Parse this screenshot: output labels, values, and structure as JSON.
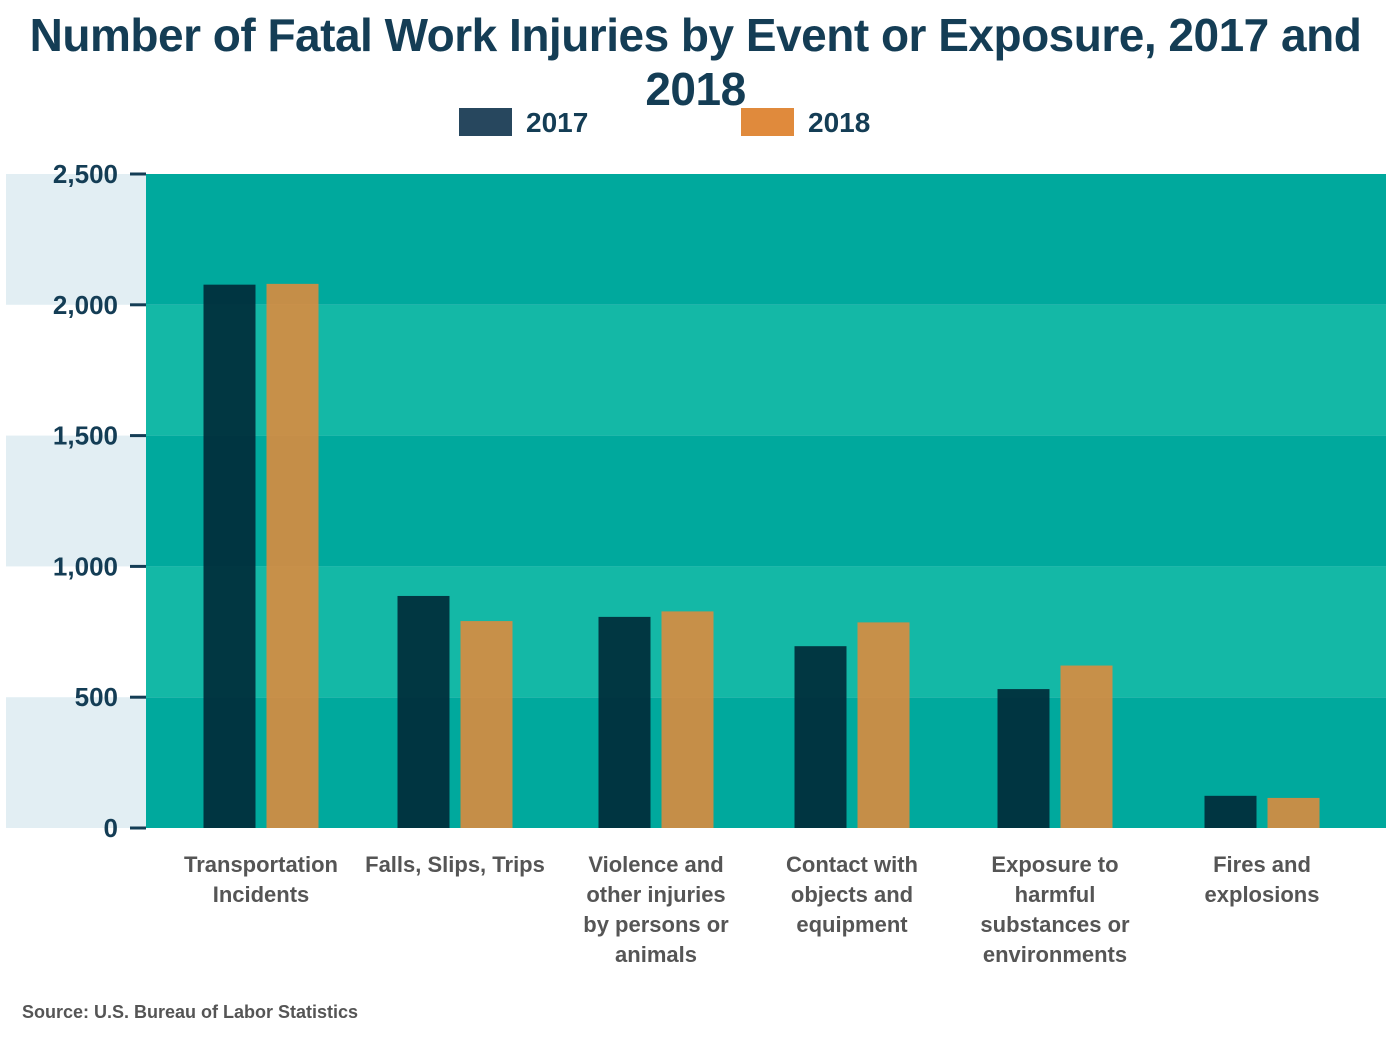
{
  "title": "Number of Fatal Work Injuries by Event or Exposure, 2017 and 2018",
  "source": "Source: U.S. Bureau of Labor Statistics",
  "colors": {
    "series_2017": "#002b3a",
    "series_2018": "#e08a3c",
    "legend_2017": "#27475e",
    "band_dark": "#00a99d",
    "band_light": "#14b8a6",
    "left_band": "#e2eef3"
  },
  "chart_data": {
    "type": "bar",
    "title": "Number of Fatal Work Injuries by Event or Exposure, 2017 and 2018",
    "xlabel": "",
    "ylabel": "",
    "ylim": [
      0,
      2500
    ],
    "yticks": [
      0,
      500,
      1000,
      1500,
      2000,
      2500
    ],
    "ytick_labels": [
      "0",
      "500",
      "1,000",
      "1,500",
      "2,000",
      "2,500"
    ],
    "legend_position": "top-center",
    "categories": [
      [
        "Transportation",
        "Incidents"
      ],
      [
        "Falls, Slips, Trips"
      ],
      [
        "Violence and",
        "other injuries",
        "by persons or",
        "animals"
      ],
      [
        "Contact with",
        "objects and",
        "equipment"
      ],
      [
        "Exposure to",
        "harmful",
        "substances or",
        "environments"
      ],
      [
        "Fires and",
        "explosions"
      ]
    ],
    "series": [
      {
        "name": "2017",
        "values": [
          2077,
          887,
          807,
          695,
          531,
          123
        ]
      },
      {
        "name": "2018",
        "values": [
          2080,
          791,
          828,
          786,
          621,
          115
        ]
      }
    ]
  }
}
